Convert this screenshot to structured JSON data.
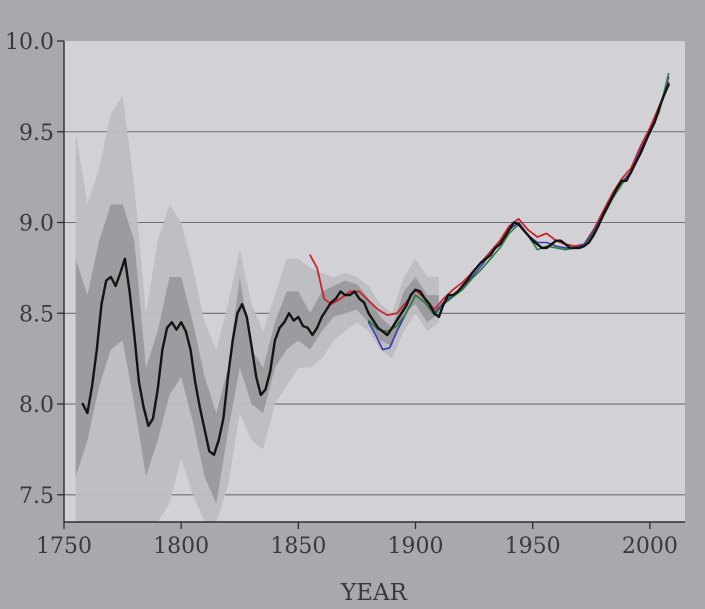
{
  "chart_data": {
    "type": "line",
    "title": "",
    "xlabel": "YEAR",
    "ylabel": "",
    "xlim": [
      1750,
      2015
    ],
    "ylim": [
      7.35,
      10.0
    ],
    "grid": true,
    "x_ticks": [
      1750,
      1800,
      1850,
      1900,
      1950,
      2000
    ],
    "y_ticks": [
      7.5,
      8.0,
      8.5,
      9.0,
      9.5,
      10.0
    ],
    "x_tick_labels": [
      "1750",
      "1800",
      "1850",
      "1900",
      "1950",
      "2000"
    ],
    "y_tick_labels": [
      "7.5",
      "8.0",
      "8.5",
      "9.0",
      "9.5",
      "10.0"
    ],
    "colors": {
      "background": "#a9a9ad",
      "plot_area": "#d2d2d6",
      "band_outer": "#bdbdc2",
      "band_inner": "#8f8f94",
      "series_main": "#141414",
      "series_red": "#c8262a",
      "series_blue": "#3b3ab0",
      "series_green": "#2e7d3a"
    },
    "uncertainty": {
      "x": [
        1755,
        1760,
        1765,
        1770,
        1775,
        1780,
        1785,
        1790,
        1795,
        1800,
        1805,
        1810,
        1815,
        1820,
        1825,
        1830,
        1835,
        1840,
        1845,
        1850,
        1855,
        1860,
        1865,
        1870,
        1875,
        1880,
        1885,
        1890,
        1895,
        1900,
        1905,
        1910
      ],
      "outer_low": [
        7.35,
        7.35,
        7.35,
        7.35,
        7.35,
        7.35,
        7.35,
        7.35,
        7.45,
        7.7,
        7.5,
        7.35,
        7.35,
        7.55,
        7.95,
        7.8,
        7.75,
        8.0,
        8.1,
        8.2,
        8.2,
        8.25,
        8.35,
        8.4,
        8.45,
        8.4,
        8.3,
        8.25,
        8.4,
        8.5,
        8.4,
        8.45
      ],
      "outer_high": [
        9.5,
        9.1,
        9.3,
        9.6,
        9.7,
        9.2,
        8.5,
        8.9,
        9.1,
        9.0,
        8.75,
        8.45,
        8.3,
        8.55,
        8.85,
        8.55,
        8.4,
        8.6,
        8.8,
        8.8,
        8.75,
        8.72,
        8.7,
        8.72,
        8.7,
        8.65,
        8.55,
        8.5,
        8.7,
        8.8,
        8.7,
        8.7
      ],
      "inner_low": [
        7.6,
        7.8,
        8.1,
        8.3,
        8.35,
        8.0,
        7.6,
        7.8,
        8.05,
        8.15,
        7.9,
        7.6,
        7.45,
        7.85,
        8.2,
        8.0,
        7.95,
        8.2,
        8.3,
        8.35,
        8.3,
        8.4,
        8.48,
        8.5,
        8.52,
        8.45,
        8.35,
        8.32,
        8.5,
        8.55,
        8.45,
        8.5
      ],
      "inner_high": [
        8.8,
        8.6,
        8.9,
        9.1,
        9.1,
        8.9,
        8.2,
        8.4,
        8.7,
        8.7,
        8.45,
        8.15,
        7.95,
        8.2,
        8.7,
        8.3,
        8.2,
        8.45,
        8.62,
        8.62,
        8.5,
        8.62,
        8.65,
        8.68,
        8.66,
        8.58,
        8.48,
        8.42,
        8.62,
        8.7,
        8.6,
        8.6
      ]
    },
    "series": [
      {
        "x": [
          1758,
          1760,
          1762,
          1764,
          1766,
          1768,
          1770,
          1772,
          1774,
          1776,
          1778,
          1780,
          1782,
          1784,
          1786,
          1788,
          1790,
          1792,
          1794,
          1796,
          1798,
          1800,
          1802,
          1804,
          1806,
          1808,
          1810,
          1812,
          1814,
          1816,
          1818,
          1820,
          1822,
          1824,
          1826,
          1828,
          1830,
          1832,
          1834,
          1836,
          1838,
          1840,
          1842,
          1844,
          1846,
          1848,
          1850,
          1852,
          1854,
          1856,
          1858,
          1860,
          1862,
          1864,
          1866,
          1868,
          1870,
          1872,
          1874,
          1876,
          1878,
          1880,
          1882,
          1884,
          1886,
          1888,
          1890,
          1892,
          1894,
          1896,
          1898,
          1900,
          1902,
          1904,
          1906,
          1908,
          1910,
          1912,
          1914,
          1916,
          1918,
          1920,
          1922,
          1924,
          1926,
          1928,
          1930,
          1932,
          1934,
          1936,
          1938,
          1940,
          1942,
          1944,
          1946,
          1948,
          1950,
          1952,
          1954,
          1956,
          1958,
          1960,
          1962,
          1964,
          1966,
          1968,
          1970,
          1972,
          1974,
          1976,
          1978,
          1980,
          1982,
          1984,
          1986,
          1988,
          1990,
          1992,
          1994,
          1996,
          1998,
          2000,
          2002,
          2004,
          2006,
          2008
        ],
        "values": [
          8.0,
          7.95,
          8.1,
          8.3,
          8.55,
          8.68,
          8.7,
          8.65,
          8.72,
          8.8,
          8.62,
          8.38,
          8.12,
          7.98,
          7.88,
          7.92,
          8.08,
          8.3,
          8.42,
          8.45,
          8.41,
          8.45,
          8.4,
          8.3,
          8.12,
          7.98,
          7.86,
          7.74,
          7.72,
          7.8,
          7.92,
          8.15,
          8.35,
          8.5,
          8.55,
          8.48,
          8.32,
          8.15,
          8.05,
          8.08,
          8.18,
          8.35,
          8.42,
          8.45,
          8.5,
          8.46,
          8.48,
          8.43,
          8.42,
          8.38,
          8.42,
          8.48,
          8.52,
          8.56,
          8.58,
          8.62,
          8.6,
          8.6,
          8.62,
          8.58,
          8.56,
          8.5,
          8.46,
          8.42,
          8.4,
          8.38,
          8.42,
          8.46,
          8.5,
          8.54,
          8.6,
          8.63,
          8.62,
          8.58,
          8.55,
          8.5,
          8.48,
          8.55,
          8.6,
          8.6,
          8.62,
          8.65,
          8.68,
          8.72,
          8.75,
          8.78,
          8.8,
          8.82,
          8.86,
          8.88,
          8.92,
          8.96,
          9.0,
          8.99,
          8.96,
          8.93,
          8.9,
          8.88,
          8.86,
          8.86,
          8.88,
          8.9,
          8.9,
          8.88,
          8.86,
          8.86,
          8.86,
          8.87,
          8.89,
          8.93,
          8.98,
          9.04,
          9.09,
          9.14,
          9.19,
          9.23,
          9.23,
          9.28,
          9.33,
          9.38,
          9.44,
          9.5,
          9.55,
          9.63,
          9.7,
          9.76
        ]
      },
      {
        "x": [
          1855,
          1858,
          1861,
          1864,
          1868,
          1872,
          1876,
          1880,
          1884,
          1888,
          1892,
          1896,
          1900,
          1904,
          1908,
          1912,
          1916,
          1920,
          1924,
          1928,
          1932,
          1936,
          1940,
          1944,
          1948,
          1952,
          1956,
          1960,
          1964,
          1968,
          1972,
          1976,
          1980,
          1984,
          1988,
          1992,
          1996,
          2000,
          2004,
          2008
        ],
        "values": [
          8.82,
          8.75,
          8.58,
          8.55,
          8.58,
          8.62,
          8.62,
          8.57,
          8.52,
          8.49,
          8.5,
          8.56,
          8.63,
          8.58,
          8.52,
          8.58,
          8.63,
          8.67,
          8.72,
          8.78,
          8.84,
          8.9,
          8.98,
          9.02,
          8.96,
          8.92,
          8.94,
          8.9,
          8.88,
          8.87,
          8.88,
          8.96,
          9.06,
          9.16,
          9.24,
          9.3,
          9.42,
          9.52,
          9.64,
          9.77
        ]
      },
      {
        "x": [
          1880,
          1883,
          1886,
          1889,
          1892,
          1896,
          1900,
          1904,
          1908,
          1912,
          1916,
          1920,
          1924,
          1928,
          1932,
          1936,
          1940,
          1944,
          1948,
          1952,
          1956,
          1960,
          1964,
          1968,
          1972,
          1976,
          1980,
          1984,
          1988,
          1992,
          1996,
          2000,
          2004,
          2008
        ],
        "values": [
          8.45,
          8.38,
          8.3,
          8.31,
          8.4,
          8.5,
          8.6,
          8.56,
          8.5,
          8.56,
          8.6,
          8.64,
          8.7,
          8.76,
          8.83,
          8.88,
          8.96,
          9.0,
          8.93,
          8.89,
          8.89,
          8.87,
          8.86,
          8.86,
          8.88,
          8.95,
          9.04,
          9.14,
          9.22,
          9.28,
          9.4,
          9.5,
          9.62,
          9.8
        ]
      },
      {
        "x": [
          1880,
          1884,
          1888,
          1892,
          1896,
          1900,
          1904,
          1908,
          1912,
          1916,
          1920,
          1924,
          1928,
          1932,
          1936,
          1940,
          1944,
          1948,
          1952,
          1956,
          1960,
          1964,
          1968,
          1972,
          1976,
          1980,
          1984,
          1988,
          1992,
          1996,
          2000,
          2004,
          2008
        ],
        "values": [
          8.46,
          8.41,
          8.4,
          8.43,
          8.5,
          8.6,
          8.56,
          8.49,
          8.55,
          8.59,
          8.63,
          8.69,
          8.74,
          8.8,
          8.86,
          8.94,
          8.99,
          8.93,
          8.85,
          8.87,
          8.86,
          8.85,
          8.86,
          8.87,
          8.94,
          9.03,
          9.13,
          9.21,
          9.27,
          9.39,
          9.49,
          9.61,
          9.82
        ]
      }
    ]
  }
}
